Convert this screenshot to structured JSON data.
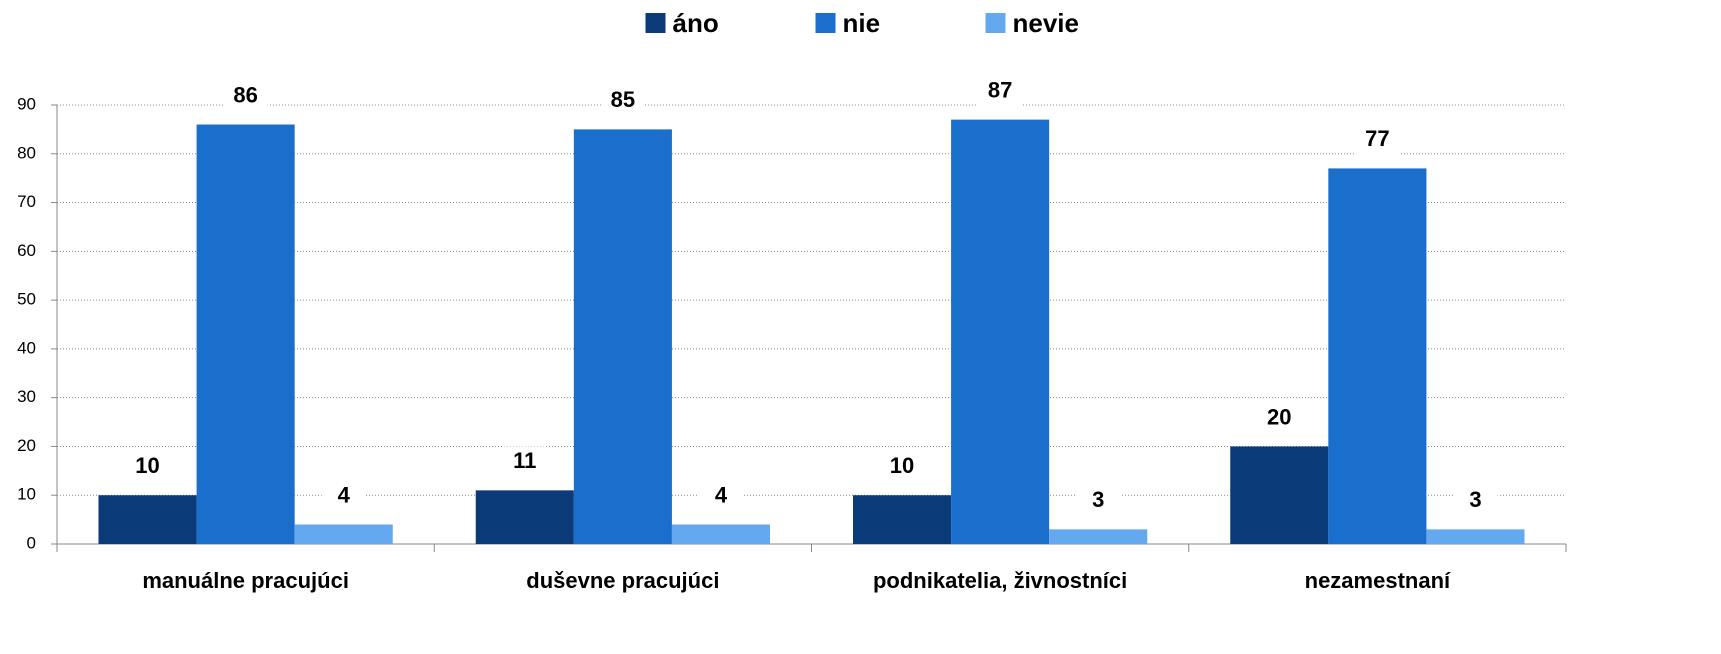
{
  "chart_data": {
    "type": "bar",
    "categories": [
      "manuálne pracujúci",
      "duševne pracujúci",
      "podnikatelia, živnostníci",
      "nezamestnaní"
    ],
    "series": [
      {
        "name": "áno",
        "color": "#0b3a78",
        "values": [
          10,
          11,
          10,
          20
        ]
      },
      {
        "name": "nie",
        "color": "#1a6fcc",
        "values": [
          86,
          85,
          87,
          77
        ]
      },
      {
        "name": "nevie",
        "color": "#64a8ef",
        "values": [
          4,
          4,
          3,
          3
        ]
      }
    ],
    "ylim": [
      0,
      90
    ],
    "yticks": [
      0,
      10,
      20,
      30,
      40,
      50,
      60,
      70,
      80,
      90
    ],
    "grid": true,
    "legend": "top"
  }
}
